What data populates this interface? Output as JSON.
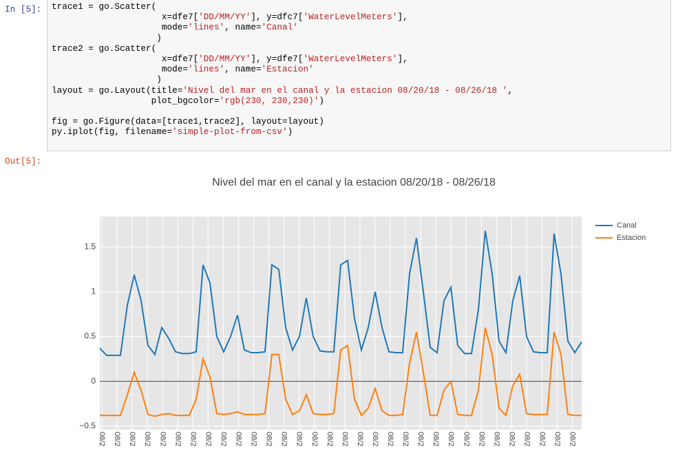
{
  "notebook": {
    "in_prompt": "In [5]:",
    "out_prompt": "Out[5]:",
    "code_lines": [
      "trace1 = go.Scatter(",
      "                     x=dfe7['DD/MM/YY'], y=dfc7['WaterLevelMeters'],",
      "                     mode='lines', name='Canal'",
      "                    )",
      "trace2 = go.Scatter(",
      "                     x=dfe7['DD/MM/YY'], y=dfe7['WaterLevelMeters'],",
      "                     mode='lines', name='Estacion'",
      "                    )",
      "layout = go.Layout(title='Nivel del mar en el canal y la estacion 08/20/18 - 08/26/18 ',",
      "                   plot_bgcolor='rgb(230, 230,230)')",
      "",
      "fig = go.Figure(data=[trace1,trace2], layout=layout)",
      "py.iplot(fig, filename='simple-plot-from-csv')"
    ]
  },
  "chart_data": {
    "type": "line",
    "title": "Nivel del mar en el canal y la estacion 08/20/18 - 08/26/18",
    "x_tick_labels": [
      "08/2",
      "08/2",
      "08/2",
      "08/2",
      "08/2",
      "08/2",
      "08/2",
      "08/2",
      "08/2",
      "08/2",
      "08/2",
      "08/2",
      "08/2",
      "08/2",
      "08/2",
      "08/2",
      "08/2",
      "08/2",
      "08/2",
      "08/2",
      "08/2",
      "08/2",
      "08/2",
      "08/2",
      "08/2",
      "08/2",
      "08/2",
      "08/2",
      "08/2",
      "08/2",
      "08/2",
      "08/2"
    ],
    "ylim": [
      -0.54,
      1.84
    ],
    "yticks": [
      {
        "value": -0.5,
        "label": "−0.5"
      },
      0,
      0.5,
      1,
      1.5
    ],
    "grid": true,
    "plot_bgcolor": "rgb(230, 230,230)",
    "legend": "top-right",
    "series": [
      {
        "name": "Canal",
        "color": "#1f77b4",
        "values": [
          0.37,
          0.29,
          0.29,
          0.29,
          0.85,
          1.19,
          0.9,
          0.4,
          0.3,
          0.6,
          0.48,
          0.33,
          0.31,
          0.31,
          0.33,
          1.3,
          1.1,
          0.5,
          0.33,
          0.5,
          0.74,
          0.35,
          0.32,
          0.32,
          0.33,
          1.3,
          1.25,
          0.6,
          0.35,
          0.5,
          0.93,
          0.5,
          0.34,
          0.33,
          0.33,
          1.3,
          1.35,
          0.7,
          0.35,
          0.6,
          1.0,
          0.6,
          0.33,
          0.32,
          0.32,
          1.2,
          1.6,
          1.0,
          0.38,
          0.32,
          0.9,
          1.05,
          0.4,
          0.31,
          0.31,
          0.8,
          1.68,
          1.2,
          0.45,
          0.32,
          0.9,
          1.18,
          0.5,
          0.33,
          0.32,
          0.32,
          1.65,
          1.2,
          0.45,
          0.32,
          0.44
        ]
      },
      {
        "name": "Estacion",
        "color": "#ff7f0e",
        "values": [
          -0.38,
          -0.38,
          -0.38,
          -0.38,
          -0.15,
          0.1,
          -0.1,
          -0.37,
          -0.39,
          -0.37,
          -0.36,
          -0.38,
          -0.38,
          -0.38,
          -0.2,
          0.25,
          0.05,
          -0.36,
          -0.37,
          -0.36,
          -0.34,
          -0.37,
          -0.37,
          -0.37,
          -0.36,
          0.3,
          0.3,
          -0.2,
          -0.37,
          -0.33,
          -0.15,
          -0.36,
          -0.37,
          -0.37,
          -0.36,
          0.35,
          0.4,
          -0.2,
          -0.38,
          -0.3,
          -0.08,
          -0.33,
          -0.38,
          -0.38,
          -0.37,
          0.2,
          0.55,
          0.1,
          -0.38,
          -0.38,
          -0.1,
          0.0,
          -0.37,
          -0.38,
          -0.38,
          -0.1,
          0.6,
          0.3,
          -0.3,
          -0.38,
          -0.05,
          0.08,
          -0.36,
          -0.37,
          -0.37,
          -0.37,
          0.55,
          0.3,
          -0.37,
          -0.38,
          -0.38
        ]
      }
    ]
  }
}
